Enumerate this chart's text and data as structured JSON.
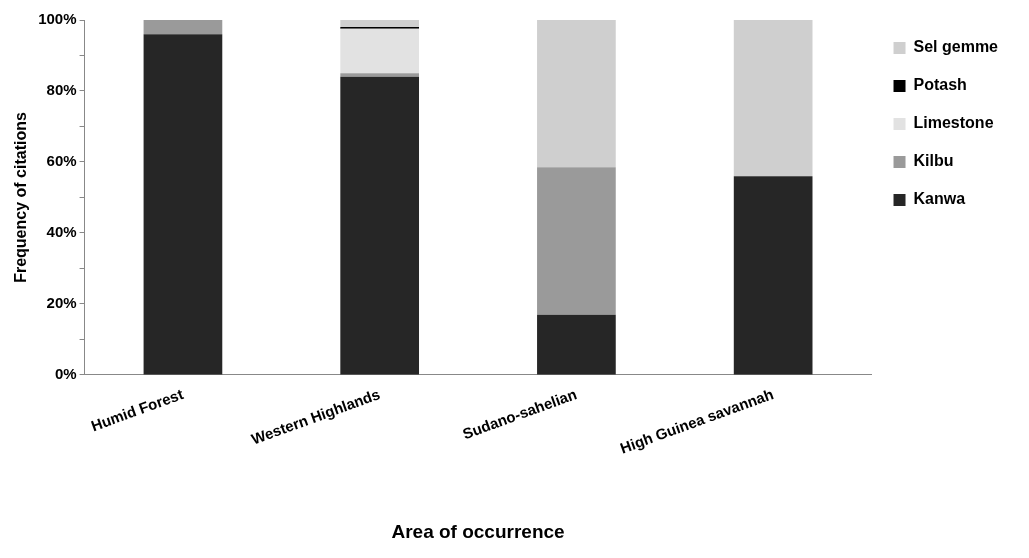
{
  "chart_data": {
    "type": "bar",
    "stacked": true,
    "xlabel": "Area of occurrence",
    "ylabel": "Frequency of citations",
    "categories": [
      "Humid Forest",
      "Western Highlands",
      "Sudano-sahelian",
      "High Guinea savannah"
    ],
    "series": [
      {
        "name": "Kanwa",
        "color": "#262626",
        "values": [
          96,
          84,
          17,
          56
        ]
      },
      {
        "name": "Kilbu",
        "color": "#9a9a9a",
        "values": [
          4,
          1,
          41.5,
          0
        ]
      },
      {
        "name": "Limestone",
        "color": "#e2e2e2",
        "values": [
          0,
          12.5,
          0,
          0
        ]
      },
      {
        "name": "Potash",
        "color": "#000000",
        "values": [
          0,
          0.5,
          0,
          0
        ]
      },
      {
        "name": "Sel gemme",
        "color": "#cfcfcf",
        "values": [
          0,
          2,
          41.5,
          44
        ]
      }
    ],
    "ylim": [
      0,
      100
    ],
    "yticks": [
      {
        "value": 0,
        "label": "0%"
      },
      {
        "value": 10,
        "label": null
      },
      {
        "value": 20,
        "label": "20%"
      },
      {
        "value": 30,
        "label": null
      },
      {
        "value": 40,
        "label": "40%"
      },
      {
        "value": 50,
        "label": null
      },
      {
        "value": 60,
        "label": "60%"
      },
      {
        "value": 70,
        "label": null
      },
      {
        "value": 80,
        "label": "80%"
      },
      {
        "value": 90,
        "label": null
      },
      {
        "value": 100,
        "label": "100%"
      }
    ],
    "grid": false,
    "legend": "right"
  }
}
